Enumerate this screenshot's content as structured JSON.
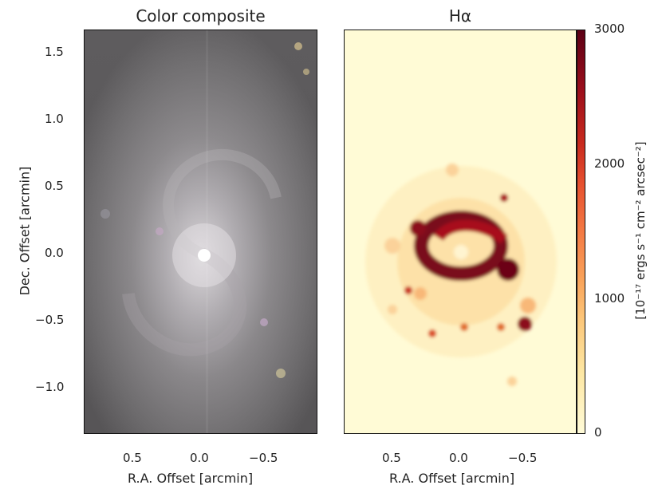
{
  "left_panel": {
    "title": "Color composite",
    "x_label": "R.A. Offset [arcmin]",
    "y_label": "Dec. Offset [arcmin]",
    "x_ticks": [
      "0.5",
      "0.0",
      "−0.5"
    ],
    "y_ticks": [
      "1.5",
      "1.0",
      "0.5",
      "0.0",
      "−0.5",
      "−1.0"
    ]
  },
  "right_panel": {
    "title": "Hα",
    "x_label": "R.A. Offset [arcmin]",
    "x_ticks": [
      "0.5",
      "0.0",
      "−0.5"
    ]
  },
  "colorbar": {
    "label": "[10⁻¹⁷ ergs s⁻¹ cm⁻² arcsec⁻²]",
    "ticks": [
      "3000",
      "2000",
      "1000",
      "0"
    ],
    "range": [
      0,
      3000
    ],
    "colormap": "YlOrRd-dark",
    "colors": {
      "low": "#fff9d6",
      "mid": "#f08a3a",
      "high": "#5c0015"
    }
  }
}
